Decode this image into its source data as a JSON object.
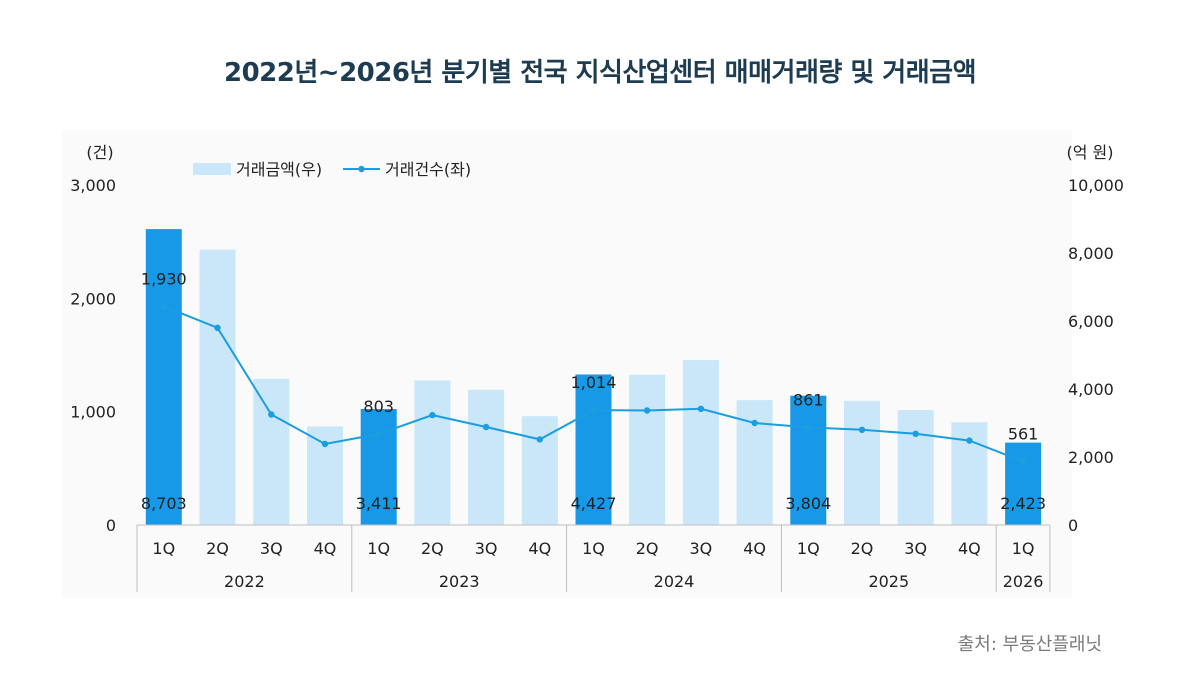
{
  "title": "2022년~2026년 분기별 전국 지식산업센터 매매거래량 및 거래금액",
  "source": "출처: 부동산플래닛",
  "chart_data": {
    "type": "bar",
    "categories": [
      "1Q",
      "2Q",
      "3Q",
      "4Q",
      "1Q",
      "2Q",
      "3Q",
      "4Q",
      "1Q",
      "2Q",
      "3Q",
      "4Q",
      "1Q",
      "2Q",
      "3Q",
      "4Q",
      "1Q"
    ],
    "years": [
      {
        "label": "2022",
        "start": 0,
        "count": 4
      },
      {
        "label": "2023",
        "start": 4,
        "count": 4
      },
      {
        "label": "2024",
        "start": 8,
        "count": 4
      },
      {
        "label": "2025",
        "start": 12,
        "count": 4
      },
      {
        "label": "2026",
        "start": 16,
        "count": 1
      }
    ],
    "series": [
      {
        "name": "거래금액(우)",
        "type": "bar",
        "axis": "right",
        "values": [
          8703,
          8100,
          4300,
          2900,
          3411,
          4250,
          3980,
          3200,
          4427,
          4420,
          4850,
          3670,
          3804,
          3650,
          3380,
          3020,
          2423
        ]
      },
      {
        "name": "거래건수(좌)",
        "type": "line",
        "axis": "left",
        "values": [
          1930,
          1740,
          975,
          715,
          803,
          970,
          865,
          755,
          1014,
          1010,
          1025,
          900,
          861,
          840,
          805,
          745,
          561
        ]
      }
    ],
    "highlight_indices": [
      0,
      4,
      8,
      12,
      16
    ],
    "highlight_bar_labels": [
      "8,703",
      "3,411",
      "4,427",
      "3,804",
      "2,423"
    ],
    "highlight_line_labels": [
      "1,930",
      "803",
      "1,014",
      "861",
      "561"
    ],
    "left_axis": {
      "unit": "(건)",
      "min": 0,
      "max": 3000,
      "ticks": [
        0,
        1000,
        2000,
        3000
      ],
      "tick_labels": [
        "0",
        "1,000",
        "2,000",
        "3,000"
      ]
    },
    "right_axis": {
      "unit": "(억 원)",
      "min": 0,
      "max": 10000,
      "ticks": [
        0,
        2000,
        4000,
        6000,
        8000,
        10000
      ],
      "tick_labels": [
        "0",
        "2,000",
        "4,000",
        "6,000",
        "8,000",
        "10,000"
      ]
    },
    "legend_placement": "top-left",
    "grid": false,
    "colors": {
      "bar_light": "#c9e7f8",
      "bar_highlight": "#1799e8",
      "line": "#1a9ee0",
      "text": "#222222"
    }
  }
}
